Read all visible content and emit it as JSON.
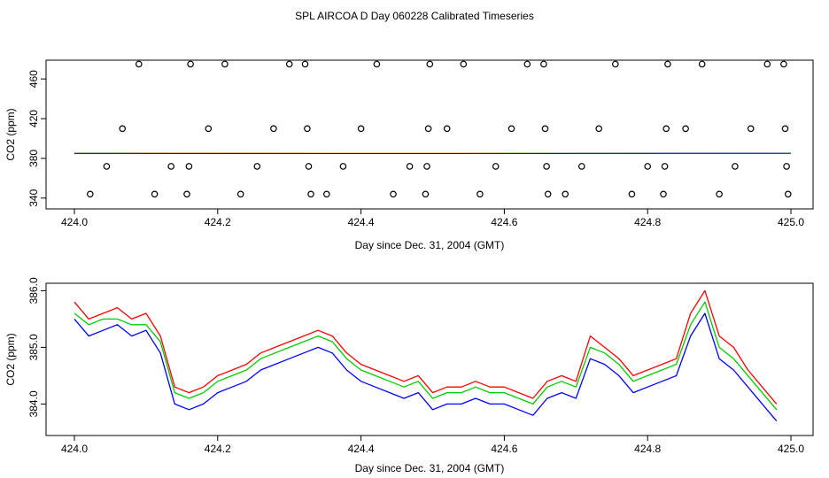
{
  "title": "SPL AIRCOA D  Day 060228  Calibrated Timeseries",
  "colors": {
    "red": "#ff0000",
    "green": "#00cc00",
    "blue": "#0000ff",
    "axis": "#000000"
  },
  "chart_data": [
    {
      "type": "scatter",
      "title": "SPL AIRCOA D  Day 060228  Calibrated Timeseries",
      "xlabel": "Day since Dec. 31, 2004 (GMT)",
      "ylabel": "CO2 (ppm)",
      "xlim": [
        424.0,
        425.0
      ],
      "ylim": [
        338,
        478
      ],
      "xticks": [
        424.0,
        424.2,
        424.4,
        424.6,
        424.8,
        425.0
      ],
      "xtick_labels": [
        "424.0",
        "424.2",
        "424.4",
        "424.6",
        "424.8",
        "425.0"
      ],
      "yticks": [
        340,
        380,
        420,
        460
      ],
      "ytick_labels": [
        "340",
        "380",
        "420",
        "460"
      ],
      "points": {
        "x": [
          424.022,
          424.045,
          424.067,
          424.09,
          424.112,
          424.135,
          424.157,
          424.16,
          424.162,
          424.187,
          424.21,
          424.232,
          424.255,
          424.278,
          424.3,
          424.322,
          424.325,
          424.327,
          424.33,
          424.352,
          424.375,
          424.4,
          424.422,
          424.445,
          424.468,
          424.49,
          424.492,
          424.494,
          424.496,
          424.52,
          424.543,
          424.566,
          424.588,
          424.61,
          424.632,
          424.655,
          424.657,
          424.659,
          424.661,
          424.685,
          424.708,
          424.732,
          424.755,
          424.778,
          424.8,
          424.822,
          424.824,
          424.826,
          424.828,
          424.853,
          424.876,
          424.9,
          424.922,
          424.944,
          424.967,
          424.99,
          424.992,
          424.994,
          424.996
        ],
        "y": [
          344,
          372,
          410,
          475,
          344,
          372,
          344,
          372,
          475,
          410,
          475,
          344,
          372,
          410,
          475,
          475,
          410,
          372,
          344,
          344,
          372,
          410,
          475,
          344,
          372,
          344,
          372,
          410,
          475,
          410,
          475,
          344,
          372,
          410,
          475,
          475,
          410,
          372,
          344,
          344,
          372,
          410,
          475,
          344,
          372,
          344,
          372,
          410,
          475,
          410,
          475,
          344,
          372,
          410,
          475,
          475,
          410,
          372,
          344
        ]
      },
      "series": [
        {
          "name": "red",
          "color": "#ff0000",
          "x": [
            424.0,
            424.5,
            425.0
          ],
          "values": [
            385.2,
            385.0,
            385.3
          ]
        },
        {
          "name": "green",
          "color": "#00cc00",
          "x": [
            424.0,
            424.5,
            425.0
          ],
          "values": [
            385.0,
            384.9,
            385.2
          ]
        },
        {
          "name": "blue",
          "color": "#0000ff",
          "x": [
            424.0,
            424.5,
            425.0
          ],
          "values": [
            384.9,
            384.8,
            385.1
          ]
        }
      ]
    },
    {
      "type": "line",
      "xlabel": "Day since Dec. 31, 2004 (GMT)",
      "ylabel": "CO2 (ppm)",
      "xlim": [
        424.0,
        425.0
      ],
      "ylim": [
        383.6,
        386.1
      ],
      "xticks": [
        424.0,
        424.2,
        424.4,
        424.6,
        424.8,
        425.0
      ],
      "xtick_labels": [
        "424.0",
        "424.2",
        "424.4",
        "424.6",
        "424.8",
        "425.0"
      ],
      "yticks": [
        384.0,
        385.0,
        386.0
      ],
      "ytick_labels": [
        "384.0",
        "385.0",
        "386.0"
      ],
      "x": [
        424.0,
        424.02,
        424.04,
        424.06,
        424.08,
        424.1,
        424.12,
        424.14,
        424.16,
        424.18,
        424.2,
        424.22,
        424.24,
        424.26,
        424.28,
        424.3,
        424.32,
        424.34,
        424.36,
        424.38,
        424.4,
        424.42,
        424.44,
        424.46,
        424.48,
        424.5,
        424.52,
        424.54,
        424.56,
        424.58,
        424.6,
        424.62,
        424.64,
        424.66,
        424.68,
        424.7,
        424.72,
        424.74,
        424.76,
        424.78,
        424.8,
        424.82,
        424.84,
        424.86,
        424.88,
        424.9,
        424.92,
        424.94,
        424.96,
        424.98
      ],
      "series": [
        {
          "name": "red",
          "color": "#ff0000",
          "values": [
            385.8,
            385.5,
            385.6,
            385.7,
            385.5,
            385.6,
            385.2,
            384.3,
            384.2,
            384.3,
            384.5,
            384.6,
            384.7,
            384.9,
            385.0,
            385.1,
            385.2,
            385.3,
            385.2,
            384.9,
            384.7,
            384.6,
            384.5,
            384.4,
            384.5,
            384.2,
            384.3,
            384.3,
            384.4,
            384.3,
            384.3,
            384.2,
            384.1,
            384.4,
            384.5,
            384.4,
            385.2,
            385.0,
            384.8,
            384.5,
            384.6,
            384.7,
            384.8,
            385.6,
            386.0,
            385.2,
            385.0,
            384.6,
            384.3,
            384.0
          ]
        },
        {
          "name": "green",
          "color": "#00cc00",
          "values": [
            385.6,
            385.4,
            385.5,
            385.5,
            385.4,
            385.4,
            385.1,
            384.2,
            384.1,
            384.2,
            384.4,
            384.5,
            384.6,
            384.8,
            384.9,
            385.0,
            385.1,
            385.2,
            385.1,
            384.8,
            384.6,
            384.5,
            384.4,
            384.3,
            384.4,
            384.1,
            384.2,
            384.2,
            384.3,
            384.2,
            384.2,
            384.1,
            384.0,
            384.3,
            384.4,
            384.3,
            385.0,
            384.9,
            384.7,
            384.4,
            384.5,
            384.6,
            384.7,
            385.4,
            385.8,
            385.0,
            384.8,
            384.5,
            384.2,
            383.9
          ]
        },
        {
          "name": "blue",
          "color": "#0000ff",
          "values": [
            385.5,
            385.2,
            385.3,
            385.4,
            385.2,
            385.3,
            384.9,
            384.0,
            383.9,
            384.0,
            384.2,
            384.3,
            384.4,
            384.6,
            384.7,
            384.8,
            384.9,
            385.0,
            384.9,
            384.6,
            384.4,
            384.3,
            384.2,
            384.1,
            384.2,
            383.9,
            384.0,
            384.0,
            384.1,
            384.0,
            384.0,
            383.9,
            383.8,
            384.1,
            384.2,
            384.1,
            384.8,
            384.7,
            384.5,
            384.2,
            384.3,
            384.4,
            384.5,
            385.2,
            385.6,
            384.8,
            384.6,
            384.3,
            384.0,
            383.7
          ]
        }
      ]
    }
  ]
}
